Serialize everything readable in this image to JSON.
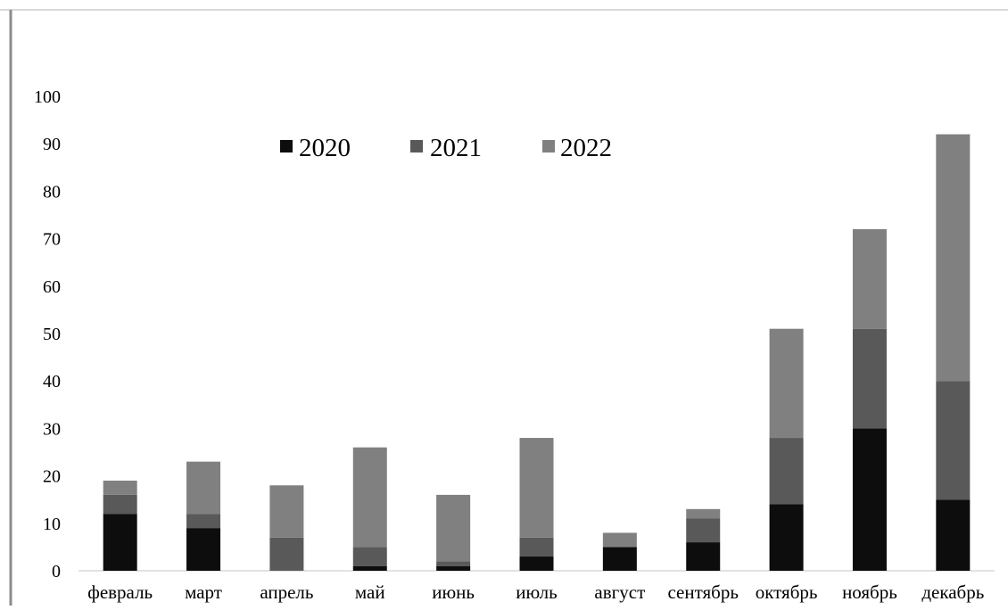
{
  "chart_data": {
    "type": "bar",
    "stacked": true,
    "categories": [
      "февраль",
      "март",
      "апрель",
      "май",
      "июнь",
      "июль",
      "август",
      "сентябрь",
      "октябрь",
      "ноябрь",
      "декабрь"
    ],
    "series": [
      {
        "name": "2020",
        "color": "#0d0d0d",
        "values": [
          12,
          9,
          0,
          1,
          1,
          3,
          5,
          6,
          14,
          30,
          15
        ]
      },
      {
        "name": "2021",
        "color": "#595959",
        "values": [
          4,
          3,
          7,
          4,
          1,
          4,
          0,
          5,
          14,
          21,
          25
        ]
      },
      {
        "name": "2022",
        "color": "#808080",
        "values": [
          3,
          11,
          11,
          21,
          14,
          21,
          3,
          2,
          23,
          21,
          52
        ]
      }
    ],
    "ylim": [
      0,
      100
    ],
    "yticks": [
      0,
      10,
      20,
      30,
      40,
      50,
      60,
      70,
      80,
      90,
      100
    ],
    "grid": false,
    "legend_position": "top"
  }
}
